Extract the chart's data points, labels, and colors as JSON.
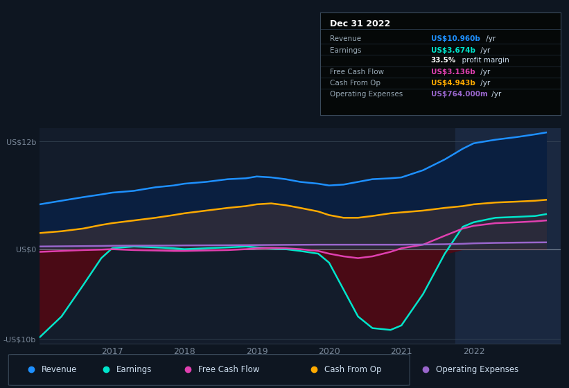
{
  "bg_color": "#0e1621",
  "plot_bg_color": "#131c2b",
  "x_years": [
    2016.0,
    2016.3,
    2016.6,
    2016.85,
    2017.0,
    2017.3,
    2017.6,
    2017.85,
    2018.0,
    2018.3,
    2018.6,
    2018.85,
    2019.0,
    2019.2,
    2019.4,
    2019.6,
    2019.85,
    2020.0,
    2020.2,
    2020.4,
    2020.6,
    2020.85,
    2021.0,
    2021.3,
    2021.6,
    2021.85,
    2022.0,
    2022.3,
    2022.6,
    2022.85,
    2023.0
  ],
  "revenue": [
    5.0,
    5.4,
    5.8,
    6.1,
    6.3,
    6.5,
    6.9,
    7.1,
    7.3,
    7.5,
    7.8,
    7.9,
    8.1,
    8.0,
    7.8,
    7.5,
    7.3,
    7.1,
    7.2,
    7.5,
    7.8,
    7.9,
    8.0,
    8.8,
    10.0,
    11.2,
    11.8,
    12.2,
    12.5,
    12.8,
    13.0
  ],
  "earnings": [
    -9.8,
    -7.5,
    -4.0,
    -1.0,
    0.1,
    0.3,
    0.2,
    0.1,
    0.0,
    0.1,
    0.2,
    0.3,
    0.2,
    0.1,
    0.0,
    -0.2,
    -0.5,
    -1.5,
    -4.5,
    -7.5,
    -8.8,
    -9.0,
    -8.5,
    -5.0,
    -0.5,
    2.5,
    3.0,
    3.5,
    3.6,
    3.7,
    3.9
  ],
  "free_cash_flow": [
    -0.3,
    -0.2,
    -0.1,
    -0.05,
    0.0,
    -0.1,
    -0.15,
    -0.2,
    -0.2,
    -0.15,
    -0.1,
    0.0,
    0.1,
    0.15,
    0.1,
    0.0,
    -0.2,
    -0.5,
    -0.8,
    -1.0,
    -0.8,
    -0.3,
    0.1,
    0.5,
    1.5,
    2.3,
    2.6,
    2.9,
    3.0,
    3.1,
    3.2
  ],
  "cash_from_op": [
    1.8,
    2.0,
    2.3,
    2.7,
    2.9,
    3.2,
    3.5,
    3.8,
    4.0,
    4.3,
    4.6,
    4.8,
    5.0,
    5.1,
    4.9,
    4.6,
    4.2,
    3.8,
    3.5,
    3.5,
    3.7,
    4.0,
    4.1,
    4.3,
    4.6,
    4.8,
    5.0,
    5.2,
    5.3,
    5.4,
    5.5
  ],
  "operating_expenses": [
    0.3,
    0.32,
    0.34,
    0.36,
    0.38,
    0.4,
    0.4,
    0.41,
    0.42,
    0.43,
    0.44,
    0.45,
    0.46,
    0.47,
    0.48,
    0.49,
    0.5,
    0.5,
    0.5,
    0.5,
    0.5,
    0.5,
    0.5,
    0.52,
    0.55,
    0.6,
    0.65,
    0.7,
    0.73,
    0.75,
    0.76
  ],
  "revenue_color": "#1e90ff",
  "earnings_color": "#00e5cc",
  "fcf_color": "#e040b0",
  "cashop_color": "#ffaa00",
  "opex_color": "#9966cc",
  "revenue_fill": "#0a1f40",
  "earnings_neg_fill": "#4a0a15",
  "cashop_fill": "#2a2a3a",
  "ylim": [
    -10.5,
    13.5
  ],
  "xlim": [
    2016.0,
    2023.2
  ],
  "yticks": [
    -10,
    0,
    12
  ],
  "ytick_labels": [
    "-US$10b",
    "US$0",
    "US$12b"
  ],
  "xticks": [
    2017,
    2018,
    2019,
    2020,
    2021,
    2022
  ],
  "shade_start": 2021.75,
  "shade_end": 2023.2,
  "title": "Dec 31 2022",
  "legend_items": [
    {
      "label": "Revenue",
      "color": "#1e90ff"
    },
    {
      "label": "Earnings",
      "color": "#00e5cc"
    },
    {
      "label": "Free Cash Flow",
      "color": "#e040b0"
    },
    {
      "label": "Cash From Op",
      "color": "#ffaa00"
    },
    {
      "label": "Operating Expenses",
      "color": "#9966cc"
    }
  ]
}
